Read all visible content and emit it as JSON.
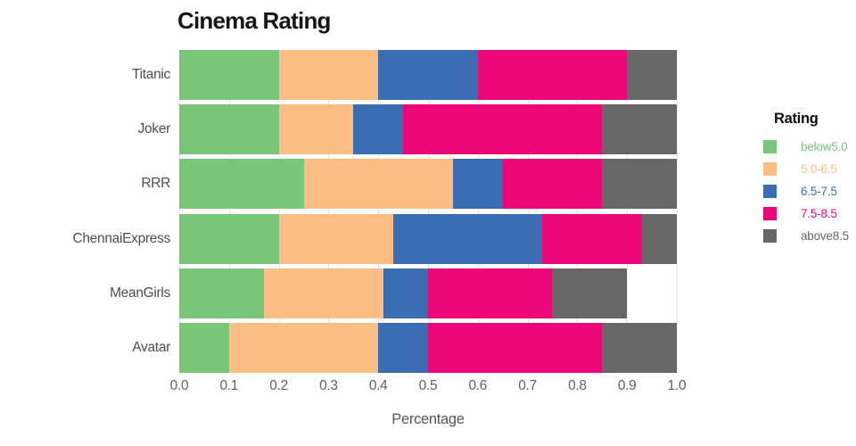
{
  "chart": {
    "title": "Cinema Rating",
    "xlabel": "Percentage"
  },
  "legend": {
    "title": "Rating"
  },
  "colors": {
    "grid": "#f6dbe2",
    "axis_text": "#616161",
    "category_text": "#4e4e4e",
    "title_text": "#161616"
  },
  "chart_data": {
    "type": "bar",
    "orientation": "horizontal",
    "stacked": true,
    "title": "Cinema Rating",
    "xlabel": "Percentage",
    "legend_title": "Rating",
    "legend_position": "right",
    "grid": true,
    "xlim": [
      0.0,
      1.0
    ],
    "x_ticks": [
      "0.0",
      "0.1",
      "0.2",
      "0.3",
      "0.4",
      "0.5",
      "0.6",
      "0.7",
      "0.8",
      "0.9",
      "1.0"
    ],
    "categories": [
      "Titanic",
      "Joker",
      "RRR",
      "ChennaiExpress",
      "MeanGirls",
      "Avatar"
    ],
    "series": [
      {
        "name": "below5.0",
        "color": "#79c679",
        "values": [
          0.2,
          0.2,
          0.25,
          0.2,
          0.17,
          0.1
        ]
      },
      {
        "name": "5.0-6.5",
        "color": "#fcbe85",
        "values": [
          0.2,
          0.15,
          0.3,
          0.23,
          0.24,
          0.3
        ]
      },
      {
        "name": "6.5-7.5",
        "color": "#3b6db4",
        "values": [
          0.2,
          0.1,
          0.1,
          0.3,
          0.09,
          0.1
        ]
      },
      {
        "name": "7.5-8.5",
        "color": "#ec0779",
        "values": [
          0.3,
          0.4,
          0.2,
          0.2,
          0.25,
          0.35
        ]
      },
      {
        "name": "above8.5",
        "color": "#676767",
        "values": [
          0.1,
          0.15,
          0.15,
          0.07,
          0.15,
          0.15
        ]
      }
    ]
  }
}
